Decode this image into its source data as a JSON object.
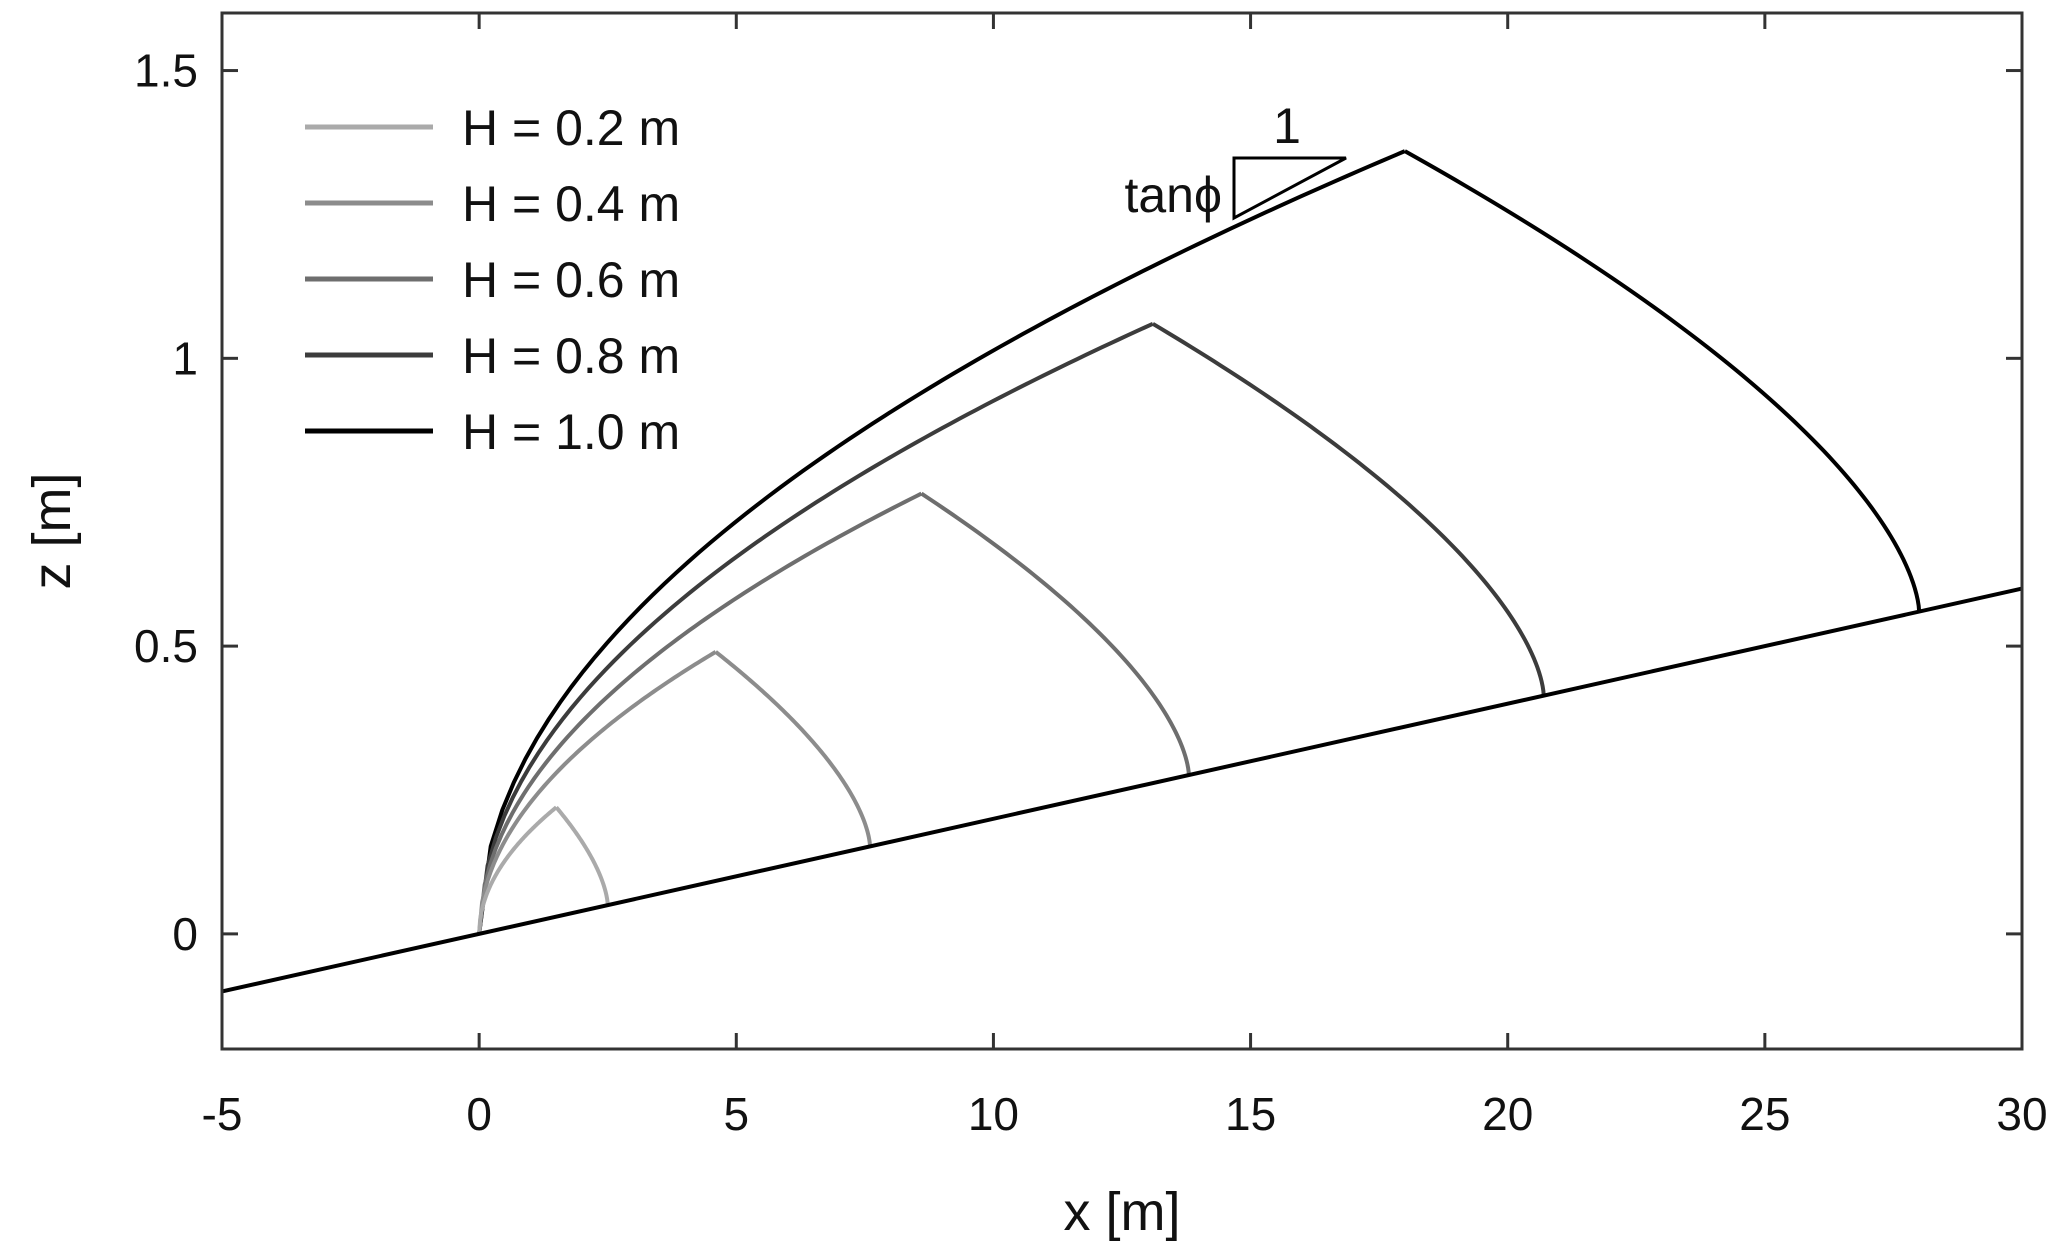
{
  "chart_data": {
    "type": "line",
    "xlabel": "x [m]",
    "ylabel": "z [m]",
    "xlim": [
      -5,
      30
    ],
    "ylim": [
      -0.2,
      1.6
    ],
    "xticks": [
      -5,
      0,
      5,
      10,
      15,
      20,
      25,
      30
    ],
    "xtick_labels": [
      "-5",
      "0",
      "5",
      "10",
      "15",
      "20",
      "25",
      "30"
    ],
    "yticks": [
      0,
      0.5,
      1,
      1.5
    ],
    "ytick_labels": [
      "0",
      "0.5",
      "1",
      "1.5"
    ],
    "grid": false,
    "legend_position": "top-left",
    "beach_slope": 0.02,
    "slope_line": {
      "x": [
        -5,
        30
      ],
      "y": [
        -0.1,
        0.6
      ],
      "color": "#000000"
    },
    "slope_annotation": {
      "rise_label": "tanϕ",
      "run_label": "1"
    },
    "series": [
      {
        "name": "H = 0.2 m",
        "color": "#aaaaaa",
        "peak": [
          1.5,
          0.22
        ],
        "runup_end": [
          2.5,
          0.05
        ]
      },
      {
        "name": "H = 0.4 m",
        "color": "#8c8c8c",
        "peak": [
          4.6,
          0.49
        ],
        "runup_end": [
          7.6,
          0.152
        ]
      },
      {
        "name": "H = 0.6 m",
        "color": "#6e6e6e",
        "peak": [
          8.6,
          0.765
        ],
        "runup_end": [
          13.8,
          0.276
        ]
      },
      {
        "name": "H = 0.8 m",
        "color": "#3c3c3c",
        "peak": [
          13.1,
          1.06
        ],
        "runup_end": [
          20.7,
          0.414
        ]
      },
      {
        "name": "H = 1.0 m",
        "color": "#000000",
        "peak": [
          18.0,
          1.36
        ],
        "runup_end": [
          28.0,
          0.56
        ]
      }
    ]
  }
}
